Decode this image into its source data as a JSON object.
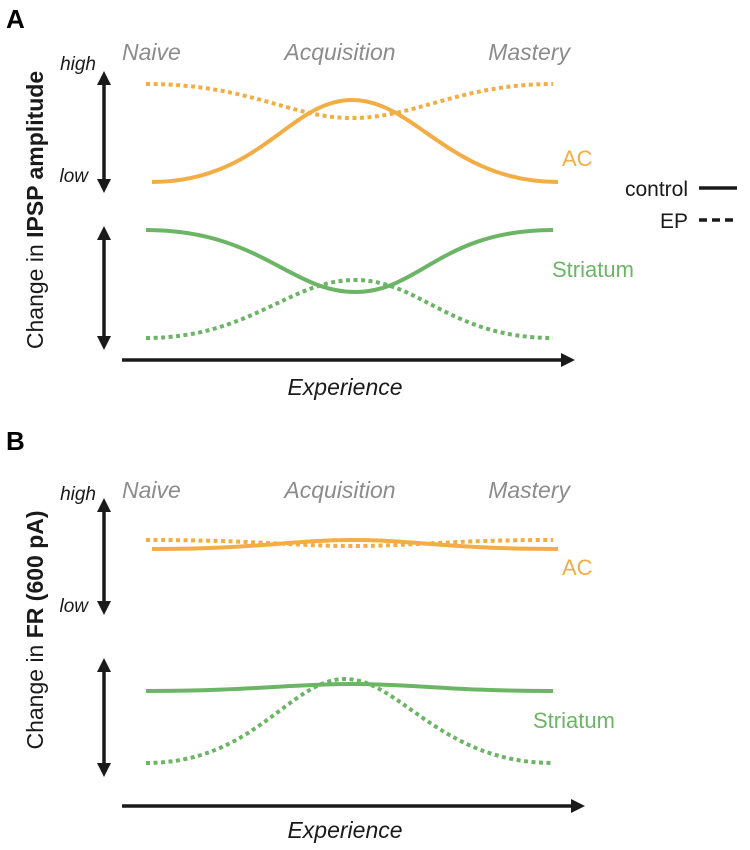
{
  "colors": {
    "ac": "#f2ae45",
    "striatum": "#6db566",
    "stage": "#8c8c8c",
    "axis": "#1a1a1a"
  },
  "legend": {
    "control_label": "control",
    "ep_label": "EP"
  },
  "panels": [
    {
      "letter": "A",
      "stages": [
        "Naive",
        "Acquisition",
        "Mastery"
      ],
      "high_label": "high",
      "low_label": "low",
      "ylabel_prefix": "Change in ",
      "ylabel_bold": "IPSP amplitude",
      "xlabel": "Experience",
      "ac_label": "AC",
      "striatum_label": "Striatum"
    },
    {
      "letter": "B",
      "stages": [
        "Naive",
        "Acquisition",
        "Mastery"
      ],
      "high_label": "high",
      "low_label": "low",
      "ylabel_prefix": "Change in ",
      "ylabel_bold": "FR (600 pA)",
      "xlabel": "Experience",
      "ac_label": "AC",
      "striatum_label": "Striatum"
    }
  ]
}
